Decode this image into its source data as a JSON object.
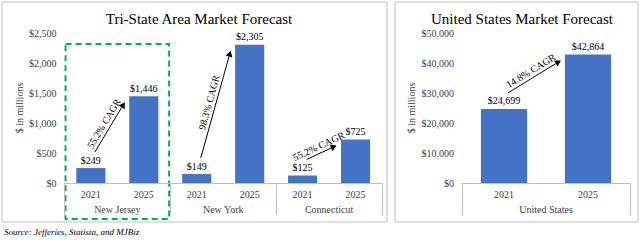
{
  "chart_data": [
    {
      "type": "bar",
      "title": "Tri-State Area Market Forecast",
      "y_label": "$ in millions",
      "categories": [
        "2021",
        "2025",
        "2021",
        "2025",
        "2021",
        "2025"
      ],
      "groups": [
        "New Jersey",
        "New York",
        "Connecticut"
      ],
      "values": [
        249,
        1446,
        149,
        2305,
        125,
        725
      ],
      "value_labels": [
        "$249",
        "$1,446",
        "$149",
        "$2,305",
        "$125",
        "$725"
      ],
      "annotations": [
        "55.2% CAGR",
        "98.3% CAGR",
        "55.2% CAGR"
      ],
      "color": "#4472c4",
      "ylim": [
        0,
        2500
      ],
      "yticks": [
        {
          "value": 0,
          "label": "$0"
        },
        {
          "value": 500,
          "label": "$500"
        },
        {
          "value": 1000,
          "label": "$1,000"
        },
        {
          "value": 1500,
          "label": "$1,500"
        },
        {
          "value": 2000,
          "label": "$2,000"
        },
        {
          "value": 2500,
          "label": "$2,500"
        }
      ],
      "grid": false,
      "data_labels": true
    },
    {
      "type": "bar",
      "title": "United States Market Forecast",
      "y_label": "$ in millions",
      "categories": [
        "2021",
        "2025"
      ],
      "groups": [
        "United States"
      ],
      "values": [
        24699,
        42864
      ],
      "value_labels": [
        "$24,699",
        "$42,864"
      ],
      "annotations": [
        "14.8% CAGR"
      ],
      "color": "#4472c4",
      "ylim": [
        0,
        50000
      ],
      "yticks": [
        {
          "value": 0,
          "label": "$0"
        },
        {
          "value": 10000,
          "label": "$10,000"
        },
        {
          "value": 20000,
          "label": "$20,000"
        },
        {
          "value": 30000,
          "label": "$30,000"
        },
        {
          "value": 40000,
          "label": "$40,000"
        },
        {
          "value": 50000,
          "label": "$50,000"
        }
      ],
      "grid": false,
      "data_labels": true
    }
  ],
  "source": "Source: Jefferies, Statista, and MJBiz"
}
